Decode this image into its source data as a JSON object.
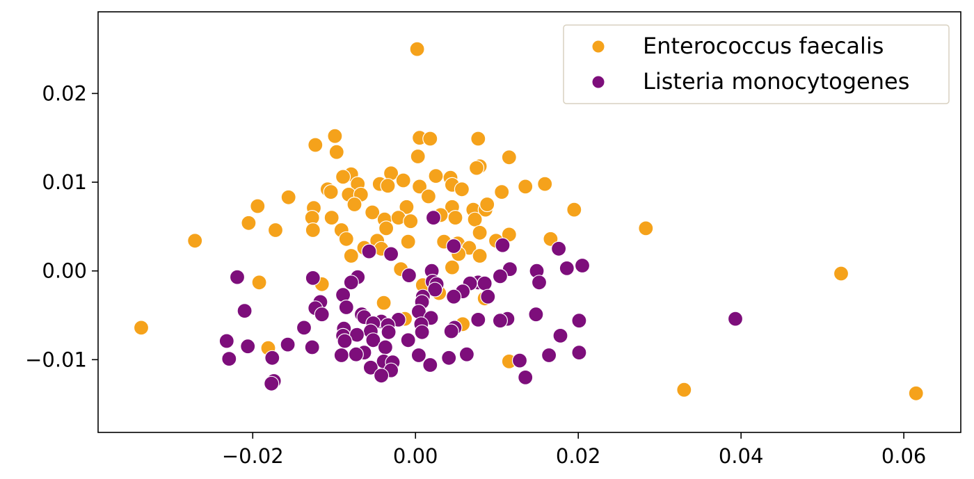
{
  "chart_data": {
    "type": "scatter",
    "title": "",
    "xlabel": "",
    "ylabel": "",
    "xlim": [
      -0.039,
      0.067
    ],
    "ylim": [
      -0.0182,
      0.0292
    ],
    "xticks": [
      -0.02,
      0.0,
      0.02,
      0.04,
      0.06
    ],
    "xtick_labels": [
      "−0.02",
      "0.00",
      "0.02",
      "0.04",
      "0.06"
    ],
    "yticks": [
      -0.01,
      0.0,
      0.01,
      0.02
    ],
    "ytick_labels": [
      "−0.01",
      "0.00",
      "0.01",
      "0.02"
    ],
    "grid": false,
    "legend_position": "top-right",
    "series": [
      {
        "name": "Enterococcus faecalis",
        "color": "#f5a21b",
        "points": [
          [
            0.0002,
            0.025
          ],
          [
            -0.0099,
            0.0152
          ],
          [
            0.0005,
            0.015
          ],
          [
            0.0018,
            0.0149
          ],
          [
            0.0077,
            0.0149
          ],
          [
            -0.0123,
            0.0142
          ],
          [
            -0.0097,
            0.0134
          ],
          [
            0.0003,
            0.0129
          ],
          [
            0.0115,
            0.0128
          ],
          [
            0.0079,
            0.0118
          ],
          [
            0.0075,
            0.0116
          ],
          [
            -0.0079,
            0.0109
          ],
          [
            -0.0089,
            0.0106
          ],
          [
            -0.003,
            0.011
          ],
          [
            0.0025,
            0.0107
          ],
          [
            0.0043,
            0.0105
          ],
          [
            -0.0015,
            0.0102
          ],
          [
            -0.0071,
            0.0098
          ],
          [
            -0.0044,
            0.0098
          ],
          [
            -0.0034,
            0.0096
          ],
          [
            0.0005,
            0.0095
          ],
          [
            0.0045,
            0.0097
          ],
          [
            0.0057,
            0.0092
          ],
          [
            0.0135,
            0.0095
          ],
          [
            0.0159,
            0.0098
          ],
          [
            -0.0108,
            0.0092
          ],
          [
            -0.0104,
            0.0089
          ],
          [
            -0.0082,
            0.0086
          ],
          [
            -0.0067,
            0.0086
          ],
          [
            0.0016,
            0.0084
          ],
          [
            0.0106,
            0.0089
          ],
          [
            -0.0156,
            0.0083
          ],
          [
            -0.0194,
            0.0073
          ],
          [
            -0.0075,
            0.0075
          ],
          [
            -0.0011,
            0.0072
          ],
          [
            0.0045,
            0.0072
          ],
          [
            0.0071,
            0.0069
          ],
          [
            0.0086,
            0.0069
          ],
          [
            0.0088,
            0.0075
          ],
          [
            0.0195,
            0.0069
          ],
          [
            -0.0125,
            0.0071
          ],
          [
            -0.0053,
            0.0066
          ],
          [
            -0.0038,
            0.0058
          ],
          [
            -0.0021,
            0.006
          ],
          [
            0.0031,
            0.0063
          ],
          [
            0.0049,
            0.006
          ],
          [
            0.0073,
            0.0058
          ],
          [
            -0.0127,
            0.006
          ],
          [
            -0.0103,
            0.006
          ],
          [
            -0.0205,
            0.0054
          ],
          [
            -0.0172,
            0.0046
          ],
          [
            -0.0126,
            0.0046
          ],
          [
            -0.0091,
            0.0046
          ],
          [
            -0.0036,
            0.0048
          ],
          [
            -0.0006,
            0.0056
          ],
          [
            0.0079,
            0.0043
          ],
          [
            0.0115,
            0.0041
          ],
          [
            0.0283,
            0.0048
          ],
          [
            -0.0271,
            0.0034
          ],
          [
            -0.0085,
            0.0036
          ],
          [
            -0.0047,
            0.0034
          ],
          [
            0.0035,
            0.0033
          ],
          [
            0.0052,
            0.0031
          ],
          [
            0.0066,
            0.0026
          ],
          [
            0.0099,
            0.0034
          ],
          [
            0.0166,
            0.0036
          ],
          [
            -0.0063,
            0.0026
          ],
          [
            -0.0042,
            0.0025
          ],
          [
            -0.0009,
            0.0033
          ],
          [
            0.0053,
            0.0019
          ],
          [
            0.0079,
            0.0017
          ],
          [
            -0.0079,
            0.0017
          ],
          [
            0.0045,
            0.0004
          ],
          [
            -0.0018,
            0.0002
          ],
          [
            0.0523,
            -0.0003
          ],
          [
            -0.0192,
            -0.0013
          ],
          [
            -0.0115,
            -0.0015
          ],
          [
            0.0009,
            -0.0016
          ],
          [
            0.0029,
            -0.0025
          ],
          [
            0.0085,
            -0.0031
          ],
          [
            -0.0039,
            -0.0036
          ],
          [
            -0.0013,
            -0.0054
          ],
          [
            0.0058,
            -0.006
          ],
          [
            -0.0337,
            -0.0064
          ],
          [
            -0.0181,
            -0.0087
          ],
          [
            0.0115,
            -0.0102
          ],
          [
            0.033,
            -0.0134
          ],
          [
            0.0615,
            -0.0138
          ]
        ]
      },
      {
        "name": "Listeria monocytogenes",
        "color": "#7d0e7b",
        "points": [
          [
            0.0022,
            0.006
          ],
          [
            -0.0057,
            0.0022
          ],
          [
            -0.003,
            0.0019
          ],
          [
            0.0047,
            0.0028
          ],
          [
            0.0107,
            0.0029
          ],
          [
            0.0176,
            0.0025
          ],
          [
            0.0205,
            0.0006
          ],
          [
            0.0186,
            0.0003
          ],
          [
            0.0116,
            0.0002
          ],
          [
            0.0149,
            0.0
          ],
          [
            0.002,
            0.0
          ],
          [
            -0.0219,
            -0.0007
          ],
          [
            -0.0126,
            -0.0008
          ],
          [
            -0.0071,
            -0.0007
          ],
          [
            -0.0008,
            -0.0005
          ],
          [
            0.0104,
            -0.0006
          ],
          [
            -0.0079,
            -0.0013
          ],
          [
            0.0021,
            -0.0012
          ],
          [
            0.0077,
            -0.0013
          ],
          [
            0.0152,
            -0.0013
          ],
          [
            0.0026,
            -0.0015
          ],
          [
            0.0067,
            -0.0014
          ],
          [
            0.0085,
            -0.0014
          ],
          [
            0.0024,
            -0.0021
          ],
          [
            0.0058,
            -0.0023
          ],
          [
            -0.0089,
            -0.0027
          ],
          [
            0.0009,
            -0.0029
          ],
          [
            0.0047,
            -0.0029
          ],
          [
            0.0089,
            -0.0029
          ],
          [
            -0.0117,
            -0.0035
          ],
          [
            0.0008,
            -0.0035
          ],
          [
            -0.0085,
            -0.0041
          ],
          [
            -0.0123,
            -0.0042
          ],
          [
            -0.021,
            -0.0045
          ],
          [
            0.0004,
            -0.0046
          ],
          [
            -0.0115,
            -0.0049
          ],
          [
            -0.0066,
            -0.0049
          ],
          [
            -0.0063,
            -0.0052
          ],
          [
            0.0019,
            -0.0053
          ],
          [
            0.0148,
            -0.0049
          ],
          [
            0.0113,
            -0.0054
          ],
          [
            0.0077,
            -0.0055
          ],
          [
            0.0104,
            -0.0056
          ],
          [
            0.0201,
            -0.0056
          ],
          [
            0.0393,
            -0.0054
          ],
          [
            -0.0021,
            -0.0055
          ],
          [
            -0.0042,
            -0.0057
          ],
          [
            -0.0052,
            -0.0059
          ],
          [
            -0.0034,
            -0.0061
          ],
          [
            0.0007,
            -0.006
          ],
          [
            -0.0137,
            -0.0064
          ],
          [
            -0.0088,
            -0.0065
          ],
          [
            0.0048,
            -0.0064
          ],
          [
            -0.0055,
            -0.0068
          ],
          [
            -0.0033,
            -0.0069
          ],
          [
            0.0008,
            -0.0069
          ],
          [
            0.0044,
            -0.0068
          ],
          [
            -0.0089,
            -0.0073
          ],
          [
            -0.0072,
            -0.0072
          ],
          [
            0.0178,
            -0.0073
          ],
          [
            -0.0232,
            -0.0079
          ],
          [
            -0.0087,
            -0.0079
          ],
          [
            -0.0052,
            -0.0078
          ],
          [
            -0.0009,
            -0.0078
          ],
          [
            -0.0157,
            -0.0083
          ],
          [
            -0.0206,
            -0.0085
          ],
          [
            -0.0127,
            -0.0086
          ],
          [
            -0.0037,
            -0.0086
          ],
          [
            -0.0063,
            -0.0092
          ],
          [
            -0.0073,
            -0.0094
          ],
          [
            -0.0091,
            -0.0095
          ],
          [
            0.0004,
            -0.0095
          ],
          [
            0.0041,
            -0.0098
          ],
          [
            0.0063,
            -0.0094
          ],
          [
            0.0164,
            -0.0095
          ],
          [
            0.0201,
            -0.0092
          ],
          [
            -0.0229,
            -0.0099
          ],
          [
            -0.0176,
            -0.0098
          ],
          [
            -0.0039,
            -0.0102
          ],
          [
            -0.0028,
            -0.0103
          ],
          [
            0.0018,
            -0.0106
          ],
          [
            0.0128,
            -0.0101
          ],
          [
            -0.0055,
            -0.0109
          ],
          [
            -0.003,
            -0.0112
          ],
          [
            -0.0042,
            -0.0118
          ],
          [
            0.0135,
            -0.012
          ],
          [
            -0.0174,
            -0.0124
          ],
          [
            -0.0177,
            -0.0127
          ]
        ]
      }
    ]
  }
}
